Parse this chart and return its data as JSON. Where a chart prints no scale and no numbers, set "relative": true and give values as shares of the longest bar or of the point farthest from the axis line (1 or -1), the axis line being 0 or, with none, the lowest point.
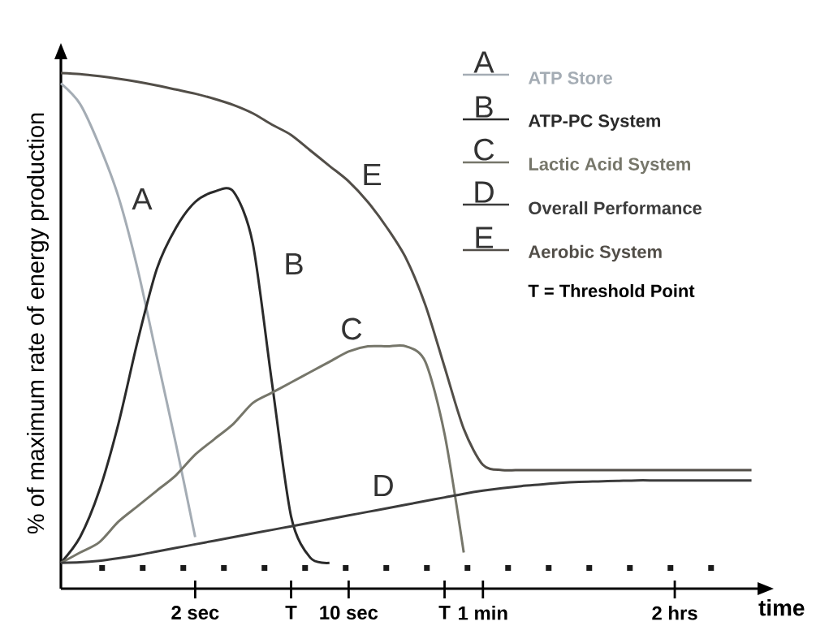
{
  "chart_data": {
    "type": "line",
    "relative": true,
    "xlabel": "time",
    "ylabel": "% of maximum rate of energy production",
    "categories": [
      null,
      null,
      null,
      null,
      null,
      null,
      null,
      "2 sec",
      null,
      null,
      null,
      null,
      "T",
      null,
      null,
      "10 sec",
      null,
      null,
      null,
      null,
      "T",
      null,
      "1 min",
      null,
      null,
      null,
      null,
      null,
      null,
      null,
      null,
      null,
      "2 hrs",
      null,
      null,
      null,
      null
    ],
    "legend": "top right",
    "series": [
      {
        "name": "ATP Store",
        "color": "#a4acb4",
        "values": [
          0.98,
          0.94,
          0.86,
          0.76,
          0.62,
          0.45,
          0.28,
          0.1,
          null,
          null,
          null,
          null,
          null,
          null,
          null,
          null,
          null,
          null,
          null,
          null,
          null,
          null,
          null,
          null,
          null,
          null,
          null,
          null,
          null,
          null,
          null,
          null,
          null,
          null,
          null,
          null,
          null
        ]
      },
      {
        "name": "ATP-PC System",
        "color": "#2a2a2a",
        "values": [
          0.05,
          0.1,
          0.19,
          0.32,
          0.48,
          0.62,
          0.7,
          0.75,
          0.77,
          0.77,
          0.67,
          0.4,
          0.14,
          0.06,
          0.05,
          null,
          null,
          null,
          null,
          null,
          null,
          null,
          null,
          null,
          null,
          null,
          null,
          null,
          null,
          null,
          null,
          null,
          null,
          null,
          null,
          null,
          null
        ]
      },
      {
        "name": "Lactic Acid System",
        "color": "#76766a",
        "values": [
          0.05,
          0.07,
          0.09,
          0.13,
          0.16,
          0.19,
          0.22,
          0.26,
          0.29,
          0.32,
          0.36,
          0.38,
          0.4,
          0.42,
          0.44,
          0.46,
          0.47,
          0.47,
          0.47,
          0.44,
          0.3,
          0.07,
          null,
          null,
          null,
          null,
          null,
          null,
          null,
          null,
          null,
          null,
          null,
          null,
          null,
          null,
          null
        ]
      },
      {
        "name": "Overall Performance",
        "color": "#3c3c3c",
        "values": [
          0.05,
          0.051,
          0.054,
          0.059,
          0.065,
          0.072,
          0.079,
          0.086,
          0.093,
          0.1,
          0.107,
          0.114,
          0.121,
          0.128,
          0.135,
          0.142,
          0.149,
          0.156,
          0.163,
          0.17,
          0.177,
          0.184,
          0.19,
          0.195,
          0.199,
          0.202,
          0.205,
          0.207,
          0.208,
          0.209,
          0.21,
          0.21,
          0.21,
          0.21,
          0.21,
          0.21,
          0.21
        ]
      },
      {
        "name": "Aerobic System",
        "color": "#524e48",
        "values": [
          1.0,
          0.998,
          0.994,
          0.989,
          0.983,
          0.976,
          0.968,
          0.96,
          0.95,
          0.938,
          0.922,
          0.9,
          0.88,
          0.85,
          0.82,
          0.79,
          0.75,
          0.7,
          0.64,
          0.55,
          0.43,
          0.31,
          0.24,
          0.23,
          0.23,
          0.23,
          0.23,
          0.23,
          0.23,
          0.23,
          0.23,
          0.23,
          0.23,
          0.23,
          0.23,
          0.23,
          0.23
        ]
      }
    ],
    "ref_lines": [
      {
        "axis": "y",
        "value": 0.04,
        "line_style": "dotted",
        "color": "#1a1a1a"
      }
    ],
    "annotations": [
      "A",
      "B",
      "C",
      "D",
      "E",
      "A",
      "B",
      "C",
      "D",
      "E",
      "T = Threshold Point"
    ]
  }
}
